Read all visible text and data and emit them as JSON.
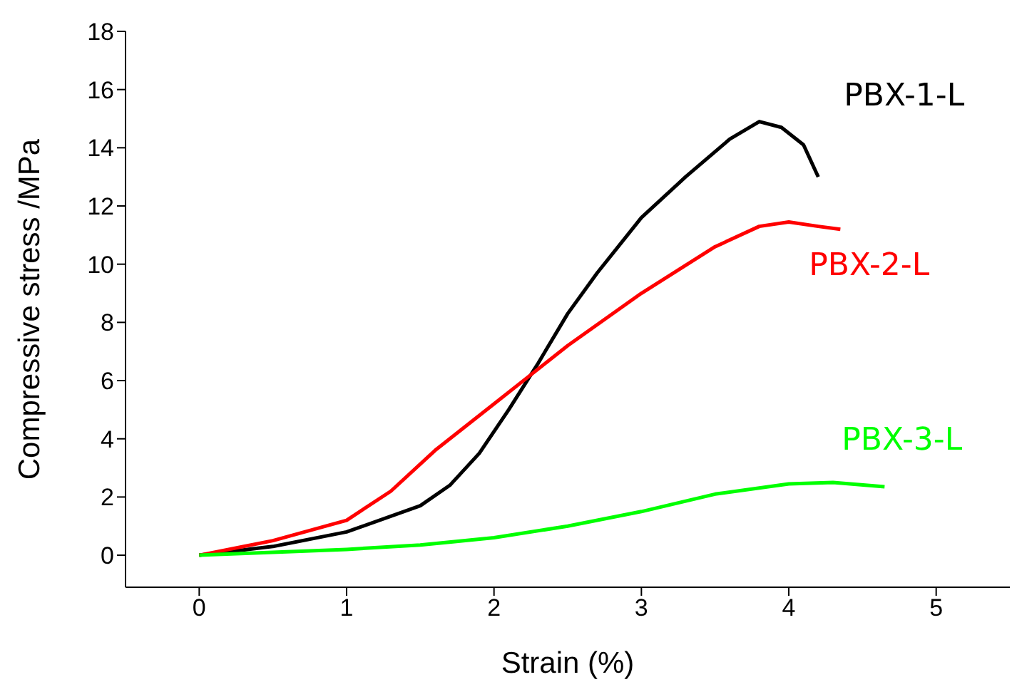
{
  "chart_data": {
    "type": "line",
    "xlabel": "Strain (%)",
    "ylabel": "Compressive stress /MPa",
    "xlim": [
      -0.5,
      5.5
    ],
    "xticks": [
      0,
      1,
      2,
      3,
      4,
      5
    ],
    "ylim": [
      -1.1,
      18
    ],
    "yticks": [
      0,
      2,
      4,
      6,
      8,
      10,
      12,
      14,
      16,
      18
    ],
    "grid": false,
    "legend": false,
    "marker": "none",
    "line_style": "solid",
    "series": [
      {
        "name": "PBX-1-L",
        "color": "#000000",
        "x": [
          0,
          0.5,
          1,
          1.5,
          1.7,
          1.9,
          2.1,
          2.3,
          2.5,
          2.7,
          3,
          3.3,
          3.6,
          3.8,
          3.95,
          4.1,
          4.2
        ],
        "values": [
          0,
          0.3,
          0.8,
          1.7,
          2.4,
          3.5,
          5,
          6.6,
          8.3,
          9.7,
          11.6,
          13,
          14.3,
          14.9,
          14.7,
          14.1,
          13
        ]
      },
      {
        "name": "PBX-2-L",
        "color": "#ff0000",
        "x": [
          0,
          0.5,
          1,
          1.3,
          1.6,
          2,
          2.25,
          2.5,
          3,
          3.5,
          3.8,
          4,
          4.2,
          4.35
        ],
        "values": [
          0,
          0.5,
          1.2,
          2.2,
          3.6,
          5.2,
          6.2,
          7.2,
          9,
          10.6,
          11.3,
          11.45,
          11.3,
          11.2
        ]
      },
      {
        "name": "PBX-3-L",
        "color": "#00ff00",
        "x": [
          0,
          0.5,
          1,
          1.5,
          2,
          2.5,
          3,
          3.5,
          4,
          4.3,
          4.65
        ],
        "values": [
          0,
          0.1,
          0.2,
          0.35,
          0.6,
          1,
          1.5,
          2.1,
          2.45,
          2.5,
          2.35
        ]
      }
    ]
  }
}
